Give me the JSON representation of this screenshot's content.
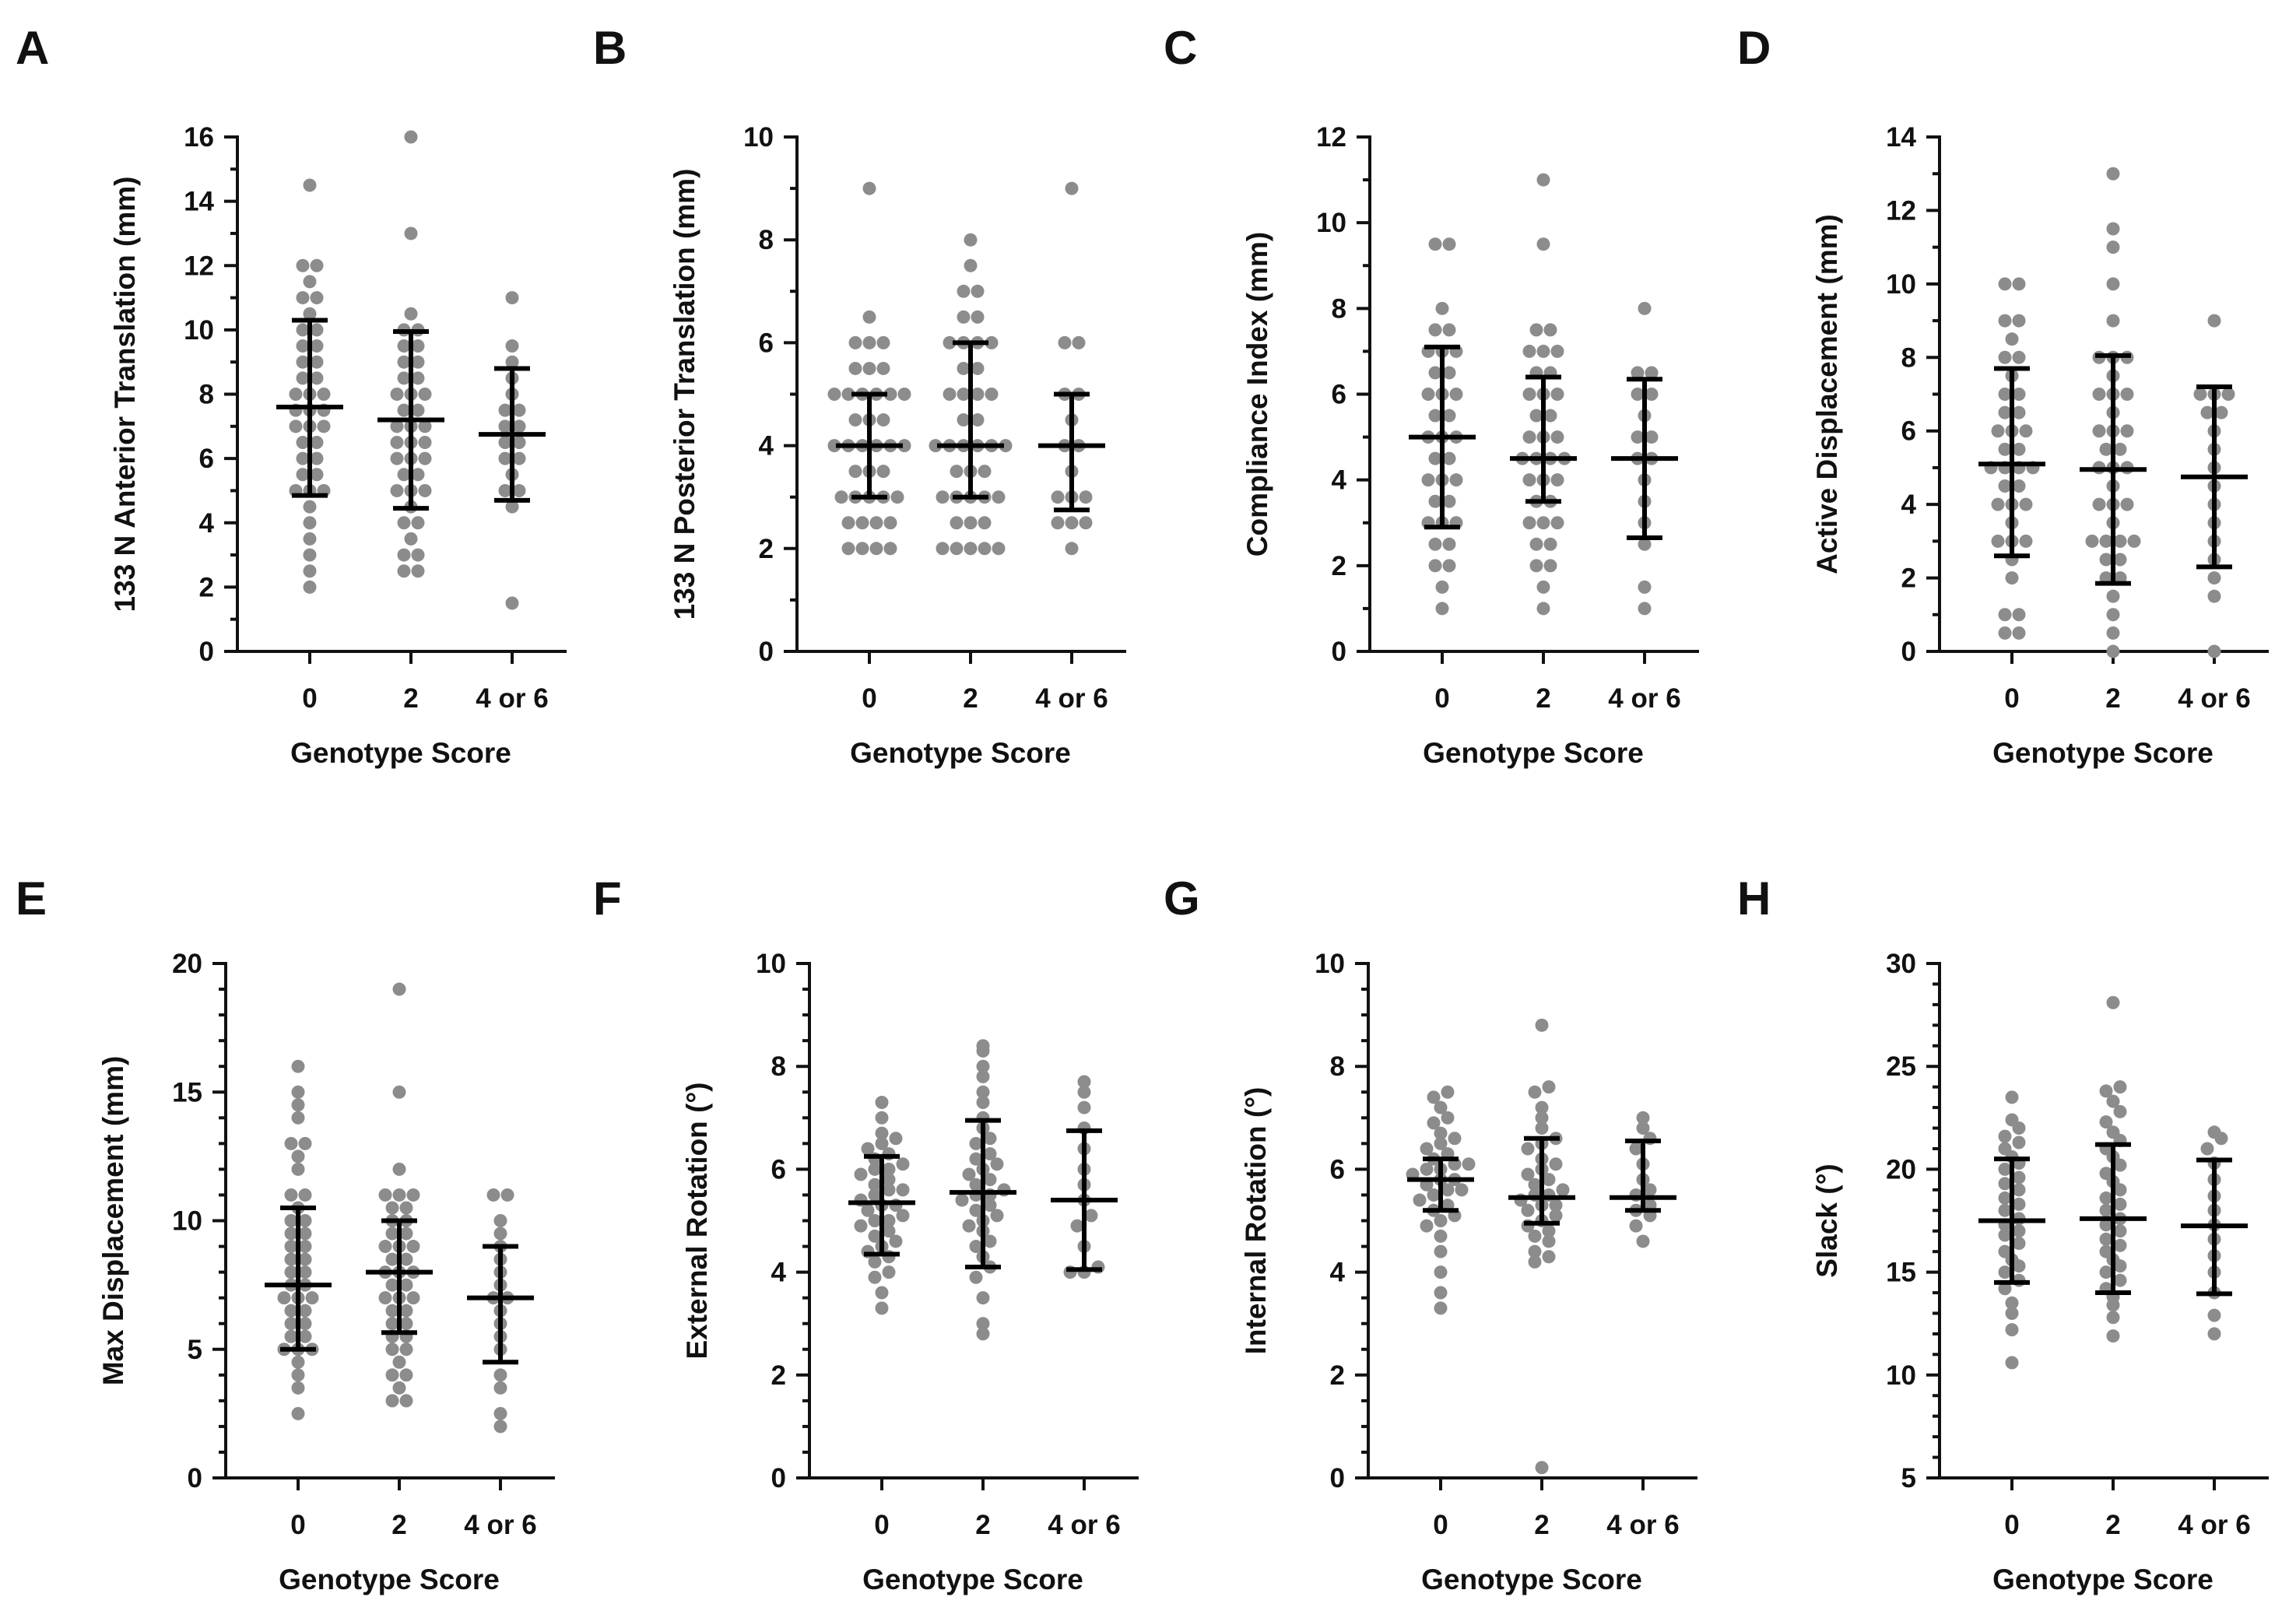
{
  "chart_data": [
    {
      "panel": "A",
      "type": "scatter",
      "ylabel": "133 N Anterior Translation (mm)",
      "xlabel": "Genotype Score",
      "categories": [
        "0",
        "2",
        "4 or 6"
      ],
      "ylim": [
        0,
        16
      ],
      "ymajor": 2,
      "yminor": 1,
      "yticks": [
        "0",
        "2",
        "4",
        "6",
        "8",
        "10",
        "12",
        "14",
        "16"
      ],
      "groups": [
        {
          "mean": 7.6,
          "upper": 10.3,
          "lower": 4.85,
          "points": [
            2,
            2.5,
            3,
            3.5,
            4,
            4.5,
            5,
            5,
            5,
            5.5,
            5.5,
            6,
            6,
            6.5,
            6.5,
            7,
            7,
            7,
            7.5,
            7.5,
            7.5,
            8,
            8,
            8,
            8.5,
            8.5,
            9,
            9,
            9.5,
            9.5,
            10,
            10,
            10.5,
            11,
            11,
            11.5,
            12,
            12,
            14.5
          ]
        },
        {
          "mean": 7.2,
          "upper": 9.95,
          "lower": 4.45,
          "points": [
            2.5,
            2.5,
            3,
            3,
            3.5,
            4,
            4,
            4.5,
            5,
            5,
            5,
            5.5,
            5.5,
            6,
            6,
            6,
            6.5,
            6.5,
            6.5,
            7,
            7,
            7,
            7.5,
            7.5,
            8,
            8,
            8,
            8.5,
            8.5,
            9,
            9,
            9.5,
            9.5,
            10,
            10,
            10.5,
            13,
            16
          ]
        },
        {
          "mean": 6.75,
          "upper": 8.8,
          "lower": 4.7,
          "points": [
            1.5,
            4.5,
            5,
            5,
            5.5,
            6,
            6,
            6.5,
            6.5,
            7,
            7,
            7.5,
            7.5,
            8,
            8.5,
            9,
            9.5,
            11
          ]
        }
      ]
    },
    {
      "panel": "B",
      "type": "scatter",
      "ylabel": "133 N Posterior Translation (mm)",
      "xlabel": "Genotype Score",
      "categories": [
        "0",
        "2",
        "4 or 6"
      ],
      "ylim": [
        0,
        10
      ],
      "ymajor": 2,
      "yminor": 1,
      "yticks": [
        "0",
        "2",
        "4",
        "6",
        "8",
        "10"
      ],
      "groups": [
        {
          "mean": 4.0,
          "upper": 5.0,
          "lower": 3.0,
          "points": [
            2,
            2,
            2,
            2,
            2.5,
            2.5,
            2.5,
            2.5,
            3,
            3,
            3,
            3,
            3,
            3.5,
            3.5,
            3.5,
            4,
            4,
            4,
            4,
            4,
            4,
            4.5,
            4.5,
            4.5,
            5,
            5,
            5,
            5,
            5,
            5,
            5.5,
            5.5,
            5.5,
            6,
            6,
            6,
            6.5,
            9
          ]
        },
        {
          "mean": 4.0,
          "upper": 6.0,
          "lower": 3.0,
          "points": [
            2,
            2,
            2,
            2,
            2,
            2.5,
            2.5,
            2.5,
            3,
            3,
            3,
            3,
            3,
            3.5,
            3.5,
            3.5,
            4,
            4,
            4,
            4,
            4,
            4,
            4.5,
            4.5,
            5,
            5,
            5,
            5,
            5.5,
            5.5,
            6,
            6,
            6,
            6,
            6.5,
            6.5,
            7,
            7,
            7.5,
            8
          ]
        },
        {
          "mean": 4.0,
          "upper": 5.0,
          "lower": 2.75,
          "points": [
            2,
            2.5,
            2.5,
            2.5,
            3,
            3,
            3,
            3.5,
            4,
            4,
            4.5,
            5,
            5,
            6,
            6,
            9
          ]
        }
      ]
    },
    {
      "panel": "C",
      "type": "scatter",
      "ylabel": "Compliance Index (mm)",
      "xlabel": "Genotype Score",
      "categories": [
        "0",
        "2",
        "4 or 6"
      ],
      "ylim": [
        0,
        12
      ],
      "ymajor": 2,
      "yminor": 1,
      "yticks": [
        "0",
        "2",
        "4",
        "6",
        "8",
        "10",
        "12"
      ],
      "groups": [
        {
          "mean": 5.0,
          "upper": 7.1,
          "lower": 2.9,
          "points": [
            1,
            1.5,
            2,
            2,
            2.5,
            2.5,
            3,
            3,
            3,
            3.5,
            3.5,
            4,
            4,
            4,
            4.5,
            4.5,
            5,
            5,
            5,
            5.5,
            5.5,
            6,
            6,
            6,
            6.5,
            6.5,
            7,
            7,
            7,
            7.5,
            7.5,
            8,
            9.5,
            9.5
          ]
        },
        {
          "mean": 4.5,
          "upper": 6.4,
          "lower": 3.5,
          "points": [
            1,
            1.5,
            2,
            2,
            2.5,
            2.5,
            3,
            3,
            3,
            3.5,
            3.5,
            4,
            4,
            4,
            4.5,
            4.5,
            4.5,
            4.5,
            5,
            5,
            5,
            5.5,
            5.5,
            6,
            6,
            6,
            6.5,
            6.5,
            7,
            7,
            7,
            7.5,
            7.5,
            9.5,
            11
          ]
        },
        {
          "mean": 4.5,
          "upper": 6.35,
          "lower": 2.65,
          "points": [
            1,
            1.5,
            2.5,
            3,
            3.5,
            4,
            4.5,
            4.5,
            5,
            5,
            5.5,
            6,
            6,
            6.5,
            6.5,
            8
          ]
        }
      ]
    },
    {
      "panel": "D",
      "type": "scatter",
      "ylabel": "Active Displacement (mm)",
      "xlabel": "Genotype Score",
      "categories": [
        "0",
        "2",
        "4 or 6"
      ],
      "ylim": [
        0,
        14
      ],
      "ymajor": 2,
      "yminor": 1,
      "yticks": [
        "0",
        "2",
        "4",
        "6",
        "8",
        "10",
        "12",
        "14"
      ],
      "groups": [
        {
          "mean": 5.1,
          "upper": 7.7,
          "lower": 2.6,
          "points": [
            0.5,
            0.5,
            1,
            1,
            2,
            2.5,
            3,
            3,
            3,
            3.5,
            4,
            4,
            4,
            4.5,
            4.5,
            5,
            5,
            5,
            5,
            5.5,
            5.5,
            6,
            6,
            6,
            6.5,
            6.5,
            7,
            7,
            7.5,
            8,
            8,
            8.5,
            9,
            9,
            10,
            10
          ]
        },
        {
          "mean": 4.95,
          "upper": 8.05,
          "lower": 1.85,
          "points": [
            0,
            0.5,
            1,
            1.5,
            2,
            2,
            2.5,
            2.5,
            3,
            3,
            3,
            3,
            3.5,
            4,
            4,
            4,
            4.5,
            5,
            5,
            5,
            5.5,
            5.5,
            6,
            6,
            6,
            6.5,
            7,
            7,
            7,
            7.5,
            8,
            8,
            8,
            9,
            10,
            11,
            11.5,
            13
          ]
        },
        {
          "mean": 4.75,
          "upper": 7.2,
          "lower": 2.3,
          "points": [
            0,
            1.5,
            2,
            2.5,
            3,
            3.5,
            4,
            4.5,
            5,
            5.5,
            6,
            6.5,
            6.5,
            7,
            7,
            7,
            9
          ]
        }
      ]
    },
    {
      "panel": "E",
      "type": "scatter",
      "ylabel": "Max Displacement (mm)",
      "xlabel": "Genotype Score",
      "categories": [
        "0",
        "2",
        "4 or 6"
      ],
      "ylim": [
        0,
        20
      ],
      "ymajor": 5,
      "yminor": 1,
      "yticks": [
        "0",
        "5",
        "10",
        "15",
        "20"
      ],
      "groups": [
        {
          "mean": 7.5,
          "upper": 10.5,
          "lower": 5.0,
          "points": [
            2.5,
            3.5,
            4,
            4.5,
            5,
            5,
            5,
            5.5,
            5.5,
            6,
            6,
            6.5,
            6.5,
            7,
            7,
            7,
            7.5,
            7.5,
            8,
            8,
            8.5,
            8.5,
            9,
            9,
            9.5,
            9.5,
            10,
            10,
            10.5,
            11,
            11,
            12,
            12.5,
            13,
            13,
            14,
            14.5,
            15,
            16
          ]
        },
        {
          "mean": 8.0,
          "upper": 10.0,
          "lower": 5.65,
          "points": [
            3,
            3,
            3.5,
            4,
            4,
            4.5,
            5,
            5,
            5.5,
            5.5,
            6,
            6,
            6.5,
            6.5,
            7,
            7,
            7,
            7.5,
            7.5,
            8,
            8,
            8,
            8.5,
            8.5,
            9,
            9,
            9,
            9.5,
            9.5,
            10,
            10,
            10.5,
            10.5,
            11,
            11,
            11,
            12,
            15,
            19
          ]
        },
        {
          "mean": 7.0,
          "upper": 9.0,
          "lower": 4.5,
          "points": [
            2,
            2.5,
            3.5,
            4,
            5,
            5.5,
            6,
            6.5,
            7,
            7,
            7.5,
            8,
            8.5,
            9,
            9.5,
            10,
            11,
            11
          ]
        }
      ]
    },
    {
      "panel": "F",
      "type": "scatter",
      "ylabel": "External Rotation (°)",
      "xlabel": "Genotype Score",
      "categories": [
        "0",
        "2",
        "4 or 6"
      ],
      "ylim": [
        0,
        10
      ],
      "ymajor": 2,
      "yminor": 0.5,
      "yticks": [
        "0",
        "2",
        "4",
        "6",
        "8",
        "10"
      ],
      "groups": [
        {
          "mean": 5.35,
          "upper": 6.25,
          "lower": 4.35,
          "points": [
            3.3,
            3.6,
            3.9,
            4.0,
            4.2,
            4.3,
            4.4,
            4.5,
            4.6,
            4.7,
            4.8,
            4.9,
            5.0,
            5.0,
            5.1,
            5.2,
            5.3,
            5.3,
            5.4,
            5.5,
            5.6,
            5.6,
            5.7,
            5.8,
            5.9,
            6.0,
            6.0,
            6.1,
            6.2,
            6.3,
            6.4,
            6.5,
            6.6,
            6.7,
            7.0,
            7.3
          ]
        },
        {
          "mean": 5.55,
          "upper": 6.95,
          "lower": 4.1,
          "points": [
            2.8,
            3.0,
            3.5,
            3.9,
            4.1,
            4.3,
            4.5,
            4.6,
            4.8,
            4.9,
            5.0,
            5.1,
            5.2,
            5.3,
            5.4,
            5.5,
            5.5,
            5.6,
            5.7,
            5.8,
            5.9,
            6.0,
            6.1,
            6.2,
            6.3,
            6.5,
            6.6,
            6.8,
            7.0,
            7.3,
            7.5,
            7.8,
            8.0,
            8.3,
            8.4
          ]
        },
        {
          "mean": 5.4,
          "upper": 6.75,
          "lower": 4.05,
          "points": [
            4.0,
            4.0,
            4.1,
            4.5,
            4.9,
            5.1,
            5.4,
            5.7,
            6.0,
            6.4,
            6.8,
            7.2,
            7.5,
            7.7
          ]
        }
      ]
    },
    {
      "panel": "G",
      "type": "scatter",
      "ylabel": "Internal Rotation (°)",
      "xlabel": "Genotype Score",
      "categories": [
        "0",
        "2",
        "4 or 6"
      ],
      "ylim": [
        0,
        10
      ],
      "ymajor": 2,
      "yminor": 0.5,
      "yticks": [
        "0",
        "2",
        "4",
        "6",
        "8",
        "10"
      ],
      "groups": [
        {
          "mean": 5.8,
          "upper": 6.2,
          "lower": 5.2,
          "points": [
            3.3,
            3.6,
            4.0,
            4.4,
            4.7,
            4.9,
            5.0,
            5.1,
            5.2,
            5.3,
            5.4,
            5.5,
            5.6,
            5.6,
            5.7,
            5.8,
            5.8,
            5.9,
            6.0,
            6.0,
            6.1,
            6.1,
            6.2,
            6.3,
            6.4,
            6.5,
            6.6,
            6.7,
            6.9,
            7.0,
            7.2,
            7.4,
            7.5
          ]
        },
        {
          "mean": 5.45,
          "upper": 6.6,
          "lower": 4.95,
          "points": [
            0.2,
            4.2,
            4.3,
            4.4,
            4.6,
            4.7,
            4.8,
            4.9,
            5.0,
            5.1,
            5.2,
            5.3,
            5.3,
            5.4,
            5.5,
            5.5,
            5.6,
            5.7,
            5.8,
            5.9,
            6.0,
            6.1,
            6.2,
            6.4,
            6.5,
            6.6,
            6.8,
            7.0,
            7.2,
            7.5,
            7.6,
            8.8
          ]
        },
        {
          "mean": 5.45,
          "upper": 6.55,
          "lower": 5.2,
          "points": [
            4.6,
            4.9,
            5.1,
            5.2,
            5.3,
            5.5,
            5.6,
            5.8,
            6.1,
            6.4,
            6.6,
            6.8,
            7.0
          ]
        }
      ]
    },
    {
      "panel": "H",
      "type": "scatter",
      "ylabel": "Slack (°)",
      "xlabel": "Genotype Score",
      "categories": [
        "0",
        "2",
        "4 or 6"
      ],
      "ylim": [
        5,
        30
      ],
      "ymajor": 5,
      "yminor": 1,
      "yticks": [
        "5",
        "10",
        "15",
        "20",
        "25",
        "30"
      ],
      "groups": [
        {
          "mean": 17.5,
          "upper": 20.5,
          "lower": 14.5,
          "points": [
            10.6,
            12.2,
            13.0,
            13.5,
            14.2,
            14.6,
            15.0,
            15.3,
            15.6,
            16.0,
            16.4,
            16.8,
            17.0,
            17.3,
            17.6,
            18.0,
            18.3,
            18.6,
            19.0,
            19.3,
            19.6,
            20.0,
            20.3,
            20.6,
            21.0,
            21.3,
            21.6,
            22.0,
            22.4,
            23.5
          ]
        },
        {
          "mean": 17.6,
          "upper": 21.2,
          "lower": 14.0,
          "points": [
            11.9,
            12.8,
            13.4,
            13.8,
            14.2,
            14.6,
            15.0,
            15.3,
            15.6,
            16.0,
            16.3,
            16.6,
            17.0,
            17.3,
            17.6,
            18.0,
            18.3,
            18.6,
            19.0,
            19.4,
            19.8,
            20.2,
            20.6,
            21.0,
            21.4,
            21.8,
            22.3,
            22.8,
            23.3,
            23.8,
            24.0,
            28.1
          ]
        },
        {
          "mean": 17.25,
          "upper": 20.45,
          "lower": 13.95,
          "points": [
            12.0,
            12.9,
            14.0,
            15.0,
            15.8,
            16.6,
            17.3,
            18.0,
            18.7,
            19.5,
            20.3,
            21.0,
            21.5,
            21.8
          ]
        }
      ]
    }
  ]
}
